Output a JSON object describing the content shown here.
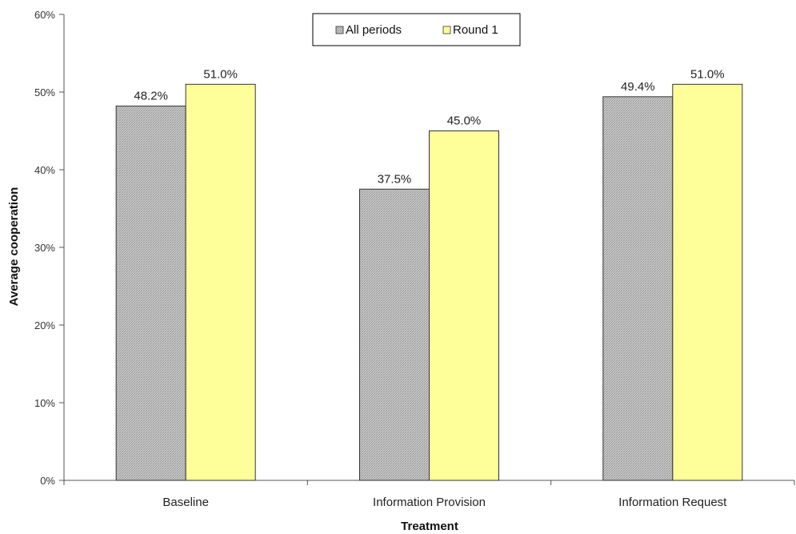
{
  "chart_data": {
    "type": "bar",
    "title": "",
    "xlabel": "Treatment",
    "ylabel": "Average cooperation",
    "categories": [
      "Baseline",
      "Information Provision",
      "Information Request"
    ],
    "series": [
      {
        "name": "All periods",
        "values": [
          48.2,
          37.5,
          49.4
        ],
        "labels": [
          "48.2%",
          "37.5%",
          "49.4%"
        ],
        "color": "#c8c8c8",
        "pattern": "crosshatch"
      },
      {
        "name": "Round 1",
        "values": [
          51.0,
          45.0,
          51.0
        ],
        "labels": [
          "51.0%",
          "45.0%",
          "51.0%"
        ],
        "color": "#ffff99",
        "pattern": "solid"
      }
    ],
    "ylim": [
      0,
      60
    ],
    "yticks": [
      "0%",
      "10%",
      "20%",
      "30%",
      "40%",
      "50%",
      "60%"
    ],
    "grid": false,
    "legend_position": "top-center"
  }
}
